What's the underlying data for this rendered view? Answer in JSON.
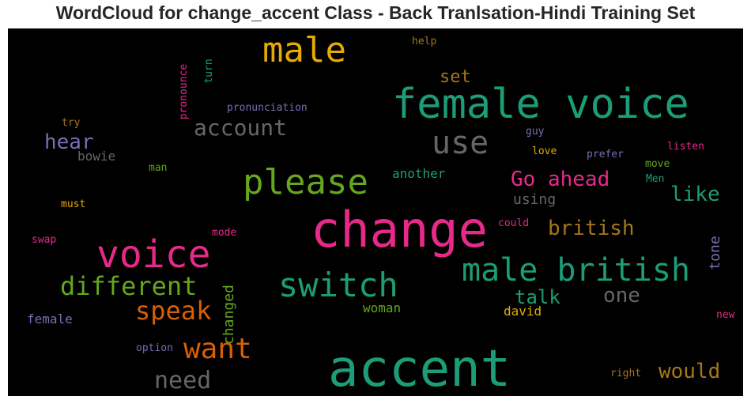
{
  "colors": {
    "background": "#000000",
    "title_text": "#262626",
    "palette": [
      "#1b9e77",
      "#d95f02",
      "#7570b3",
      "#e7298a",
      "#66a61e",
      "#e6ab02",
      "#a6761d",
      "#666666"
    ]
  },
  "chart_data": {
    "type": "wordcloud",
    "title": "WordCloud for change_accent Class - Back Tranlsation-Hindi Training Set",
    "words": [
      {
        "text": "accent",
        "color": "#1b9e77"
      },
      {
        "text": "change",
        "color": "#e7298a"
      },
      {
        "text": "female voice",
        "color": "#1b9e77"
      },
      {
        "text": "male",
        "color": "#e6ab02"
      },
      {
        "text": "voice",
        "color": "#e7298a"
      },
      {
        "text": "male british",
        "color": "#1b9e77"
      },
      {
        "text": "switch",
        "color": "#1b9e77"
      },
      {
        "text": "please",
        "color": "#66a61e"
      },
      {
        "text": "use",
        "color": "#666666"
      },
      {
        "text": "want",
        "color": "#d95f02"
      },
      {
        "text": "different",
        "color": "#66a61e"
      },
      {
        "text": "speak",
        "color": "#d95f02"
      },
      {
        "text": "account",
        "color": "#666666"
      },
      {
        "text": "need",
        "color": "#666666"
      },
      {
        "text": "Go ahead",
        "color": "#e7298a"
      },
      {
        "text": "would",
        "color": "#a6761d"
      },
      {
        "text": "british",
        "color": "#a6761d"
      },
      {
        "text": "like",
        "color": "#1b9e77"
      },
      {
        "text": "hear",
        "color": "#7570b3"
      },
      {
        "text": "one",
        "color": "#666666"
      },
      {
        "text": "talk",
        "color": "#1b9e77"
      },
      {
        "text": "set",
        "color": "#a6761d"
      },
      {
        "text": "changed",
        "color": "#66a61e"
      },
      {
        "text": "using",
        "color": "#666666"
      },
      {
        "text": "tone",
        "color": "#7570b3"
      },
      {
        "text": "another",
        "color": "#1b9e77"
      },
      {
        "text": "bowie",
        "color": "#666666"
      },
      {
        "text": "woman",
        "color": "#66a61e"
      },
      {
        "text": "female",
        "color": "#7570b3"
      },
      {
        "text": "david",
        "color": "#e6ab02"
      },
      {
        "text": "pronunciation",
        "color": "#7570b3"
      },
      {
        "text": "pronounce",
        "color": "#e7298a"
      },
      {
        "text": "turn",
        "color": "#1b9e77"
      },
      {
        "text": "help",
        "color": "#a6761d"
      },
      {
        "text": "try",
        "color": "#a6761d"
      },
      {
        "text": "guy",
        "color": "#7570b3"
      },
      {
        "text": "love",
        "color": "#e6ab02"
      },
      {
        "text": "prefer",
        "color": "#7570b3"
      },
      {
        "text": "listen",
        "color": "#e7298a"
      },
      {
        "text": "man",
        "color": "#66a61e"
      },
      {
        "text": "move",
        "color": "#66a61e"
      },
      {
        "text": "Men",
        "color": "#1b9e77"
      },
      {
        "text": "must",
        "color": "#e6ab02"
      },
      {
        "text": "swap",
        "color": "#e7298a"
      },
      {
        "text": "mode",
        "color": "#e7298a"
      },
      {
        "text": "could",
        "color": "#e7298a"
      },
      {
        "text": "option",
        "color": "#7570b3"
      },
      {
        "text": "right",
        "color": "#a6761d"
      },
      {
        "text": "new",
        "color": "#e7298a"
      }
    ]
  }
}
